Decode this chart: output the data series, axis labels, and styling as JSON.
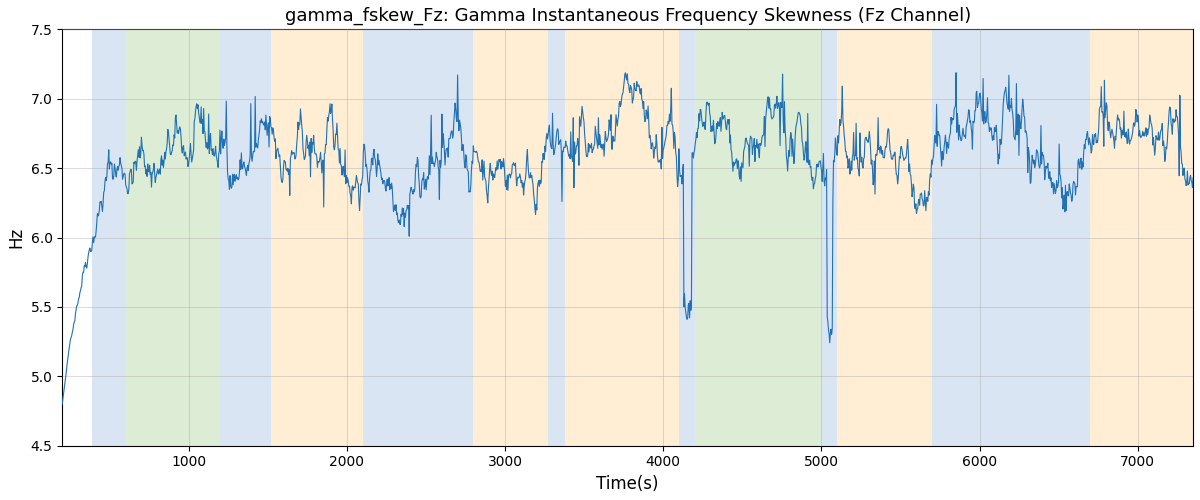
{
  "title": "gamma_fskew_Fz: Gamma Instantaneous Frequency Skewness (Fz Channel)",
  "xlabel": "Time(s)",
  "ylabel": "Hz",
  "xlim": [
    200,
    7350
  ],
  "ylim": [
    4.5,
    7.5
  ],
  "line_color": "#2171b5",
  "line_width": 0.8,
  "background_color": "#ffffff",
  "grid_color": "#aaaaaa",
  "bands": [
    {
      "xmin": 390,
      "xmax": 600,
      "color": "#aec6e8",
      "alpha": 0.45
    },
    {
      "xmin": 600,
      "xmax": 1200,
      "color": "#b5d5a0",
      "alpha": 0.45
    },
    {
      "xmin": 1200,
      "xmax": 1520,
      "color": "#aec6e8",
      "alpha": 0.45
    },
    {
      "xmin": 1520,
      "xmax": 2100,
      "color": "#ffd9a0",
      "alpha": 0.45
    },
    {
      "xmin": 2100,
      "xmax": 2800,
      "color": "#aec6e8",
      "alpha": 0.45
    },
    {
      "xmin": 2800,
      "xmax": 3270,
      "color": "#ffd9a0",
      "alpha": 0.45
    },
    {
      "xmin": 3270,
      "xmax": 3380,
      "color": "#aec6e8",
      "alpha": 0.45
    },
    {
      "xmin": 3380,
      "xmax": 4100,
      "color": "#ffd9a0",
      "alpha": 0.45
    },
    {
      "xmin": 4100,
      "xmax": 4200,
      "color": "#aec6e8",
      "alpha": 0.45
    },
    {
      "xmin": 4200,
      "xmax": 5000,
      "color": "#b5d5a0",
      "alpha": 0.45
    },
    {
      "xmin": 5000,
      "xmax": 5100,
      "color": "#aec6e8",
      "alpha": 0.45
    },
    {
      "xmin": 5100,
      "xmax": 5700,
      "color": "#ffd9a0",
      "alpha": 0.45
    },
    {
      "xmin": 5700,
      "xmax": 6700,
      "color": "#aec6e8",
      "alpha": 0.45
    },
    {
      "xmin": 6700,
      "xmax": 7350,
      "color": "#ffd9a0",
      "alpha": 0.45
    }
  ],
  "x_ticks": [
    1000,
    2000,
    3000,
    4000,
    5000,
    6000,
    7000
  ],
  "y_ticks": [
    4.5,
    5.0,
    5.5,
    6.0,
    6.5,
    7.0,
    7.5
  ]
}
